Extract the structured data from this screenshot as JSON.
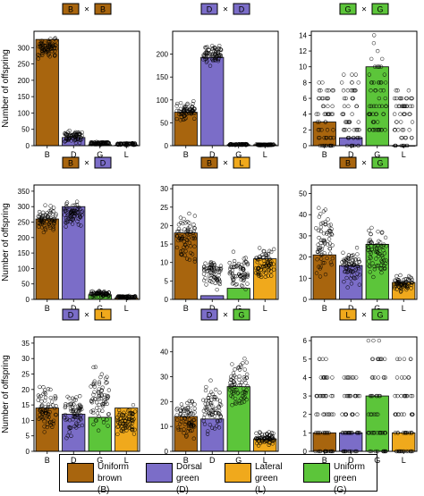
{
  "colors": {
    "B": "#a8650e",
    "D": "#7b6dc8",
    "G": "#5cc53a",
    "L": "#f0a91c"
  },
  "chart_data": [
    {
      "type": "bar",
      "cross": [
        "B",
        "B"
      ],
      "categories": [
        "B",
        "D",
        "G",
        "L"
      ],
      "values": [
        325,
        25,
        3,
        2
      ],
      "ylim": [
        0,
        350
      ],
      "yticks": [
        0,
        50,
        100,
        150,
        200,
        250,
        300
      ],
      "ylabel": "Number of offspring",
      "scatter": [
        [
          250,
          345
        ],
        [
          0,
          55
        ],
        [
          0,
          15
        ],
        [
          0,
          10
        ]
      ]
    },
    {
      "type": "bar",
      "cross": [
        "D",
        "D"
      ],
      "categories": [
        "B",
        "D",
        "G",
        "L"
      ],
      "values": [
        73,
        193,
        2,
        2
      ],
      "ylim": [
        0,
        250
      ],
      "yticks": [
        0,
        50,
        100,
        150,
        200
      ],
      "ylabel": "",
      "scatter": [
        [
          40,
          110
        ],
        [
          160,
          240
        ],
        [
          0,
          5
        ],
        [
          0,
          4
        ]
      ]
    },
    {
      "type": "bar",
      "cross": [
        "G",
        "G"
      ],
      "categories": [
        "B",
        "D",
        "G",
        "L"
      ],
      "values": [
        3,
        1,
        10,
        0
      ],
      "ylim": [
        0,
        14.5
      ],
      "yticks": [
        0,
        2,
        4,
        6,
        8,
        10,
        12,
        14
      ],
      "ylabel": "",
      "discrete": true,
      "scatter": [
        [
          0,
          8
        ],
        [
          0,
          9
        ],
        [
          2,
          14
        ],
        [
          0,
          7
        ]
      ]
    },
    {
      "type": "bar",
      "cross": [
        "B",
        "D"
      ],
      "categories": [
        "B",
        "D",
        "G",
        "L"
      ],
      "values": [
        260,
        300,
        15,
        5
      ],
      "ylim": [
        0,
        370
      ],
      "yticks": [
        0,
        50,
        100,
        150,
        200,
        250,
        300,
        350
      ],
      "ylabel": "Number of offspring",
      "scatter": [
        [
          190,
          330
        ],
        [
          210,
          345
        ],
        [
          0,
          35
        ],
        [
          0,
          15
        ]
      ]
    },
    {
      "type": "bar",
      "cross": [
        "B",
        "L"
      ],
      "categories": [
        "B",
        "D",
        "G",
        "L"
      ],
      "values": [
        18,
        1,
        3,
        11
      ],
      "ylim": [
        0,
        31
      ],
      "yticks": [
        0,
        5,
        10,
        15,
        20,
        25,
        30
      ],
      "ylabel": "",
      "scatter": [
        [
          5,
          30
        ],
        [
          0,
          14
        ],
        [
          0,
          15
        ],
        [
          2,
          17
        ]
      ]
    },
    {
      "type": "bar",
      "cross": [
        "B",
        "G"
      ],
      "categories": [
        "B",
        "D",
        "G",
        "L"
      ],
      "values": [
        21,
        16,
        26,
        8
      ],
      "ylim": [
        0,
        54
      ],
      "yticks": [
        0,
        10,
        20,
        30,
        40,
        50
      ],
      "ylabel": "",
      "scatter": [
        [
          0,
          53
        ],
        [
          0,
          30
        ],
        [
          2,
          42
        ],
        [
          0,
          15
        ]
      ]
    },
    {
      "type": "bar",
      "cross": [
        "D",
        "L"
      ],
      "categories": [
        "B",
        "D",
        "G",
        "L"
      ],
      "values": [
        14,
        12,
        11,
        14
      ],
      "ylim": [
        0,
        37
      ],
      "yticks": [
        0,
        5,
        10,
        15,
        20,
        25,
        30,
        35
      ],
      "ylabel": "Number of offspring",
      "scatter": [
        [
          0,
          28
        ],
        [
          0,
          24
        ],
        [
          0,
          36
        ],
        [
          0,
          20
        ]
      ]
    },
    {
      "type": "bar",
      "cross": [
        "D",
        "G"
      ],
      "categories": [
        "B",
        "D",
        "G",
        "L"
      ],
      "values": [
        14,
        13,
        26,
        5
      ],
      "ylim": [
        0,
        46
      ],
      "yticks": [
        0,
        10,
        20,
        30,
        40
      ],
      "ylabel": "",
      "scatter": [
        [
          0,
          27
        ],
        [
          0,
          33
        ],
        [
          10,
          45
        ],
        [
          0,
          11
        ]
      ]
    },
    {
      "type": "bar",
      "cross": [
        "L",
        "G"
      ],
      "categories": [
        "B",
        "D",
        "G",
        "L"
      ],
      "values": [
        1,
        1,
        3,
        1
      ],
      "ylim": [
        0,
        6.2
      ],
      "yticks": [
        0,
        1,
        2,
        3,
        4,
        5,
        6
      ],
      "ylabel": "",
      "discrete": true,
      "scatter": [
        [
          0,
          5
        ],
        [
          0,
          4
        ],
        [
          0,
          6
        ],
        [
          0,
          5
        ]
      ]
    }
  ],
  "legend": [
    {
      "key": "B",
      "label": "Uniform\nbrown (B)"
    },
    {
      "key": "D",
      "label": "Dorsal\ngreen (D)"
    },
    {
      "key": "L",
      "label": "Lateral\ngreen (L)"
    },
    {
      "key": "G",
      "label": "Uniform\ngreen (G)"
    }
  ],
  "cross_symbol": "×"
}
